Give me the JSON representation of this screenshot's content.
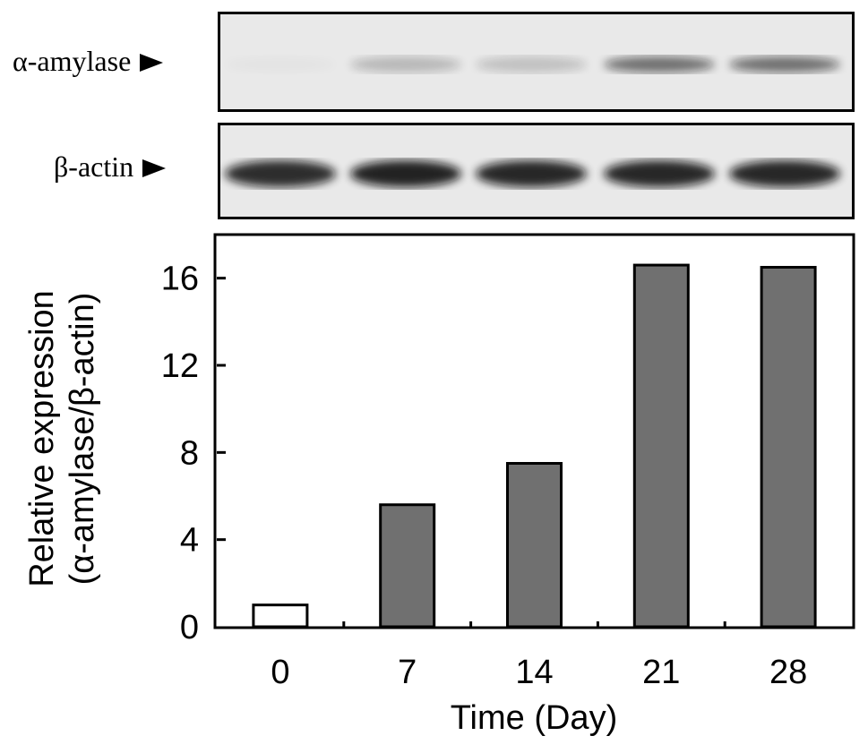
{
  "blots": {
    "rows": [
      {
        "label": "α-amylase",
        "band_intensity": [
          0.02,
          0.22,
          0.18,
          0.55,
          0.55
        ]
      },
      {
        "label": "β-actin",
        "band_intensity": [
          0.85,
          0.9,
          0.88,
          0.88,
          0.88
        ]
      }
    ]
  },
  "chart_data": {
    "type": "bar",
    "categories": [
      "0",
      "7",
      "14",
      "21",
      "28"
    ],
    "values": [
      1.0,
      5.6,
      7.5,
      16.6,
      16.5
    ],
    "bar_colors": [
      "#ffffff",
      "#707070",
      "#707070",
      "#707070",
      "#707070"
    ],
    "xlabel": "Time (Day)",
    "ylabel_line1": "Relative expression",
    "ylabel_line2": "(α-amylase/β-actin)",
    "ylim": [
      0,
      18
    ],
    "yticks": [
      0,
      4,
      8,
      12,
      16
    ],
    "grid": false
  }
}
